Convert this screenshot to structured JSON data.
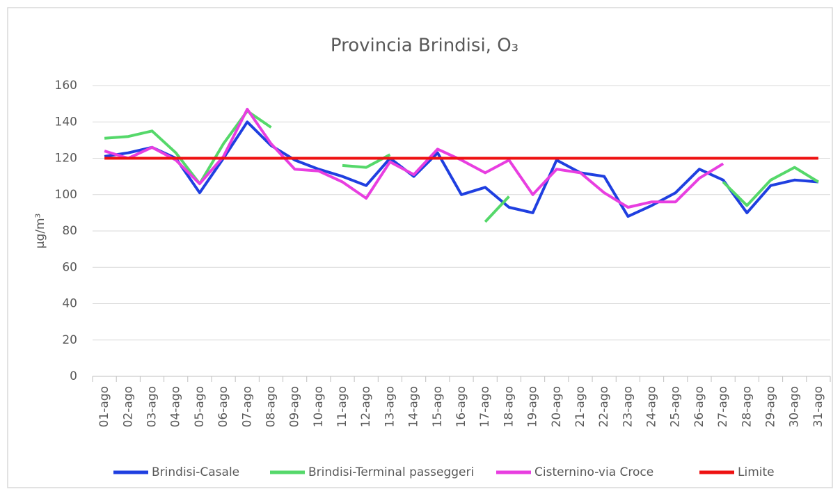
{
  "chart_data": {
    "type": "line",
    "title": "Provincia Brindisi, O₃",
    "y_label": "µg/m³",
    "categories": [
      "01-ago",
      "02-ago",
      "03-ago",
      "04-ago",
      "05-ago",
      "06-ago",
      "07-ago",
      "08-ago",
      "09-ago",
      "10-ago",
      "11-ago",
      "12-ago",
      "13-ago",
      "14-ago",
      "15-ago",
      "16-ago",
      "17-ago",
      "18-ago",
      "19-ago",
      "20-ago",
      "21-ago",
      "22-ago",
      "23-ago",
      "24-ago",
      "25-ago",
      "26-ago",
      "27-ago",
      "28-ago",
      "29-ago",
      "30-ago",
      "31-ago"
    ],
    "series": [
      {
        "name": "Brindisi-Casale",
        "color": "#1f3fe0",
        "values": [
          121,
          123,
          126,
          120,
          101,
          120,
          140,
          127,
          119,
          114,
          110,
          105,
          120,
          110,
          123,
          100,
          104,
          93,
          90,
          119,
          112,
          110,
          88,
          94,
          101,
          114,
          108,
          90,
          105,
          108,
          107
        ]
      },
      {
        "name": "Brindisi-Terminal passeggeri",
        "color": "#55d86a",
        "values": [
          131,
          132,
          135,
          123,
          106,
          128,
          146,
          137,
          null,
          null,
          116,
          115,
          122,
          null,
          null,
          null,
          85,
          99,
          null,
          null,
          null,
          null,
          null,
          null,
          null,
          null,
          107,
          94,
          108,
          115,
          107
        ]
      },
      {
        "name": "Cisternino-via Croce",
        "color": "#e83ee0",
        "values": [
          124,
          120,
          126,
          119,
          106,
          121,
          147,
          128,
          114,
          113,
          107,
          98,
          118,
          111,
          125,
          119,
          112,
          119,
          100,
          114,
          112,
          101,
          93,
          96,
          96,
          109,
          117,
          null,
          null,
          null,
          null
        ]
      },
      {
        "name": "Limite",
        "color": "#ee1111",
        "values": [
          120,
          120,
          120,
          120,
          120,
          120,
          120,
          120,
          120,
          120,
          120,
          120,
          120,
          120,
          120,
          120,
          120,
          120,
          120,
          120,
          120,
          120,
          120,
          120,
          120,
          120,
          120,
          120,
          120,
          120,
          120
        ]
      }
    ],
    "ylim": [
      0,
      160
    ],
    "yticks": [
      0,
      20,
      40,
      60,
      80,
      100,
      120,
      140,
      160
    ],
    "grid": true,
    "legend": "bottom"
  }
}
